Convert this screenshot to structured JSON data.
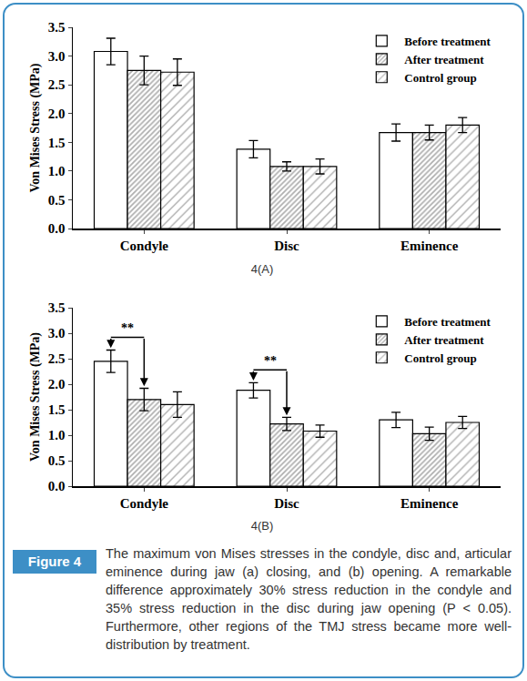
{
  "chart_data": [
    {
      "type": "bar",
      "subtitle": "4(A)",
      "y_label": "Von Mises Stress (MPa)",
      "categories": [
        "Condyle",
        "Disc",
        "Eminence"
      ],
      "series": [
        {
          "name": "Before treatment",
          "color": "#ffffff",
          "values": [
            3.08,
            1.38,
            1.67
          ],
          "errors": [
            0.23,
            0.15,
            0.15
          ]
        },
        {
          "name": "After treatment",
          "color": "#606060",
          "values": [
            2.75,
            1.08,
            1.67
          ],
          "errors": [
            0.25,
            0.08,
            0.13
          ]
        },
        {
          "name": "Control group",
          "color": "#606060",
          "values": [
            2.72,
            1.08,
            1.8
          ],
          "errors": [
            0.23,
            0.13,
            0.13
          ]
        }
      ],
      "ylim": [
        0,
        3.5
      ],
      "yticks": [
        {
          "value": 0,
          "label": "0.0"
        },
        0.5,
        {
          "value": 1,
          "label": "1.0"
        },
        1.5,
        {
          "value": 2,
          "label": "2.0"
        },
        2.5,
        {
          "value": 3,
          "label": "3.0"
        },
        3.5
      ],
      "grid": false,
      "legend": "upper right"
    },
    {
      "type": "bar",
      "subtitle": "4(B)",
      "y_label": "Von Mises Stress (MPa)",
      "categories": [
        "Condyle",
        "Disc",
        "Eminence"
      ],
      "series": [
        {
          "name": "Before treatment",
          "color": "#ffffff",
          "values": [
            2.45,
            1.88,
            1.3
          ],
          "errors": [
            0.22,
            0.15,
            0.15
          ]
        },
        {
          "name": "After treatment",
          "color": "#606060",
          "values": [
            1.7,
            1.22,
            1.03
          ],
          "errors": [
            0.22,
            0.13,
            0.13
          ]
        },
        {
          "name": "Control group",
          "color": "#606060",
          "values": [
            1.6,
            1.08,
            1.25
          ],
          "errors": [
            0.25,
            0.12,
            0.12
          ]
        }
      ],
      "ylim": [
        0,
        3.5
      ],
      "yticks": [
        {
          "value": 0,
          "label": "0.0"
        },
        0.5,
        {
          "value": 1,
          "label": "1.0"
        },
        1.5,
        {
          "value": 2,
          "label": "2.0"
        },
        2.5,
        {
          "value": 3,
          "label": "3.0"
        },
        3.5
      ],
      "grid": false,
      "legend": "upper right",
      "annotations": [
        {
          "category": "Condyle",
          "from": "Before treatment",
          "to": "After treatment",
          "text": "**"
        },
        {
          "category": "Disc",
          "from": "Before treatment",
          "to": "After treatment",
          "text": "**"
        }
      ]
    }
  ],
  "caption": {
    "label": "Figure 4",
    "text": "The maximum von Mises stresses in the condyle, disc and, articular eminence during jaw (a) closing, and (b) opening. A remarkable difference approximately 30% stress reduction in the condyle and 35% stress reduction in the disc during jaw opening (P < 0.05). Furthermore, other regions of the TMJ stress became more well-distribution by treatment."
  }
}
